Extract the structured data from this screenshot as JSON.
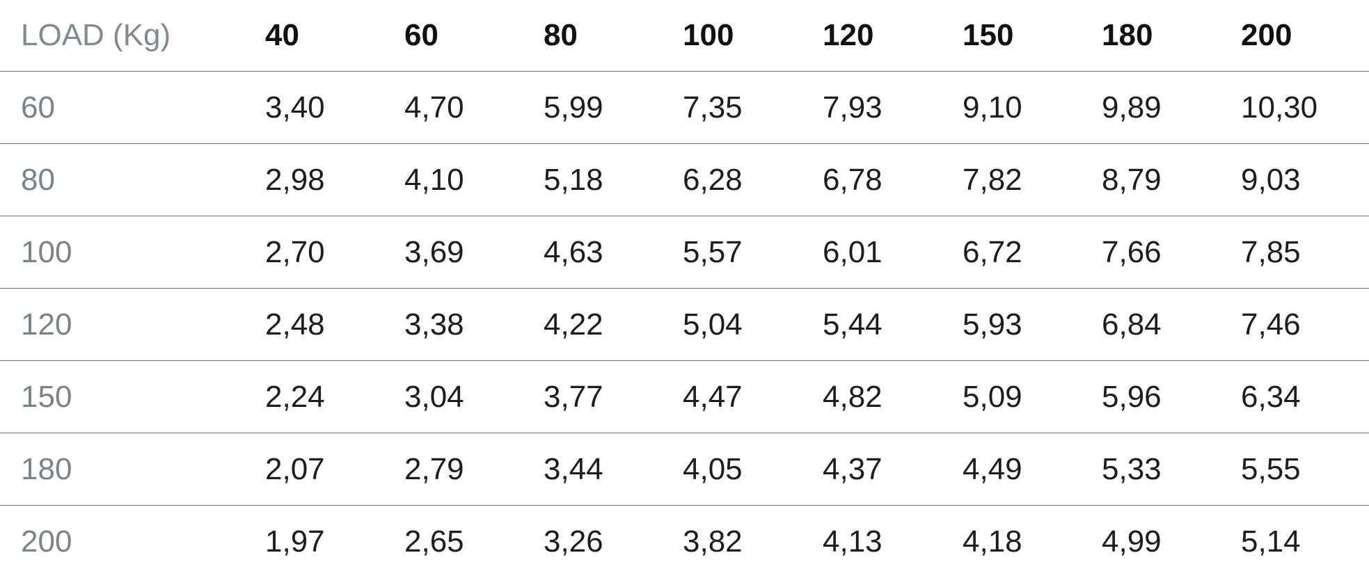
{
  "table": {
    "corner_label": "LOAD (Kg)",
    "columns": [
      "40",
      "60",
      "80",
      "100",
      "120",
      "150",
      "180",
      "200"
    ],
    "rows": [
      {
        "label": "60",
        "values": [
          "3,40",
          "4,70",
          "5,99",
          "7,35",
          "7,93",
          "9,10",
          "9,89",
          "10,30"
        ]
      },
      {
        "label": "80",
        "values": [
          "2,98",
          "4,10",
          "5,18",
          "6,28",
          "6,78",
          "7,82",
          "8,79",
          "9,03"
        ]
      },
      {
        "label": "100",
        "values": [
          "2,70",
          "3,69",
          "4,63",
          "5,57",
          "6,01",
          "6,72",
          "7,66",
          "7,85"
        ]
      },
      {
        "label": "120",
        "values": [
          "2,48",
          "3,38",
          "4,22",
          "5,04",
          "5,44",
          "5,93",
          "6,84",
          "7,46"
        ]
      },
      {
        "label": "150",
        "values": [
          "2,24",
          "3,04",
          "3,77",
          "4,47",
          "4,82",
          "5,09",
          "5,96",
          "6,34"
        ]
      },
      {
        "label": "180",
        "values": [
          "2,07",
          "2,79",
          "3,44",
          "4,05",
          "4,37",
          "4,49",
          "5,33",
          "5,55"
        ]
      },
      {
        "label": "200",
        "values": [
          "1,97",
          "2,65",
          "3,26",
          "3,82",
          "4,13",
          "4,18",
          "4,99",
          "5,14"
        ]
      }
    ],
    "colors": {
      "label_gray": "#7b838a",
      "value_text": "#1d1d1d",
      "divider": "#6b6b6b"
    }
  }
}
